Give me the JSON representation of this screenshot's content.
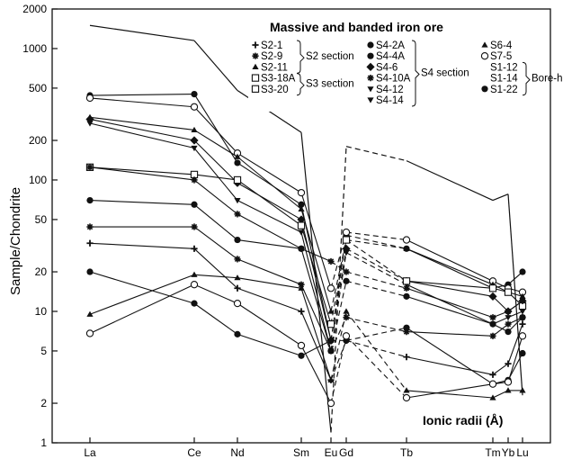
{
  "chart_data": {
    "type": "line",
    "title": "",
    "ylabel": "Sample/Chondrite",
    "xlabel": "",
    "yscale": "log",
    "ylim": [
      1,
      2000
    ],
    "y_ticks": [
      "1",
      "2",
      "5",
      "10",
      "20",
      "50",
      "100",
      "200",
      "500",
      "1000",
      "2000"
    ],
    "categories": [
      "La",
      "Ce",
      "Nd",
      "Sm",
      "Eu",
      "Gd",
      "Tb",
      "Tm",
      "Yb",
      "Lu"
    ],
    "annotation": "Ionic radii (Å)",
    "legend": {
      "title": "Massive and banded iron ore",
      "groups": [
        {
          "label": "S2 section",
          "samples": [
            "S2-1",
            "S2-9",
            "S2-11"
          ]
        },
        {
          "label": "S3 section",
          "samples": [
            "S3-18A",
            "S3-20"
          ]
        },
        {
          "label": "S4 section",
          "samples": [
            "S4-2A",
            "S4-4A",
            "S4-6",
            "S4-10A",
            "S4-12",
            "S4-14"
          ]
        },
        {
          "label": "",
          "samples": [
            "S6-4",
            "S7-5"
          ]
        },
        {
          "label": "Bore-holes",
          "samples": [
            "S1-12",
            "S1-14",
            "S1-22"
          ]
        }
      ]
    },
    "series": [
      {
        "values": [
          1500,
          1150,
          480,
          230,
          1.2,
          180,
          140,
          70,
          78,
          2.3
        ],
        "marker": "none",
        "style": "mixed"
      },
      {
        "values": [
          440,
          450,
          135,
          65,
          6,
          38,
          30,
          15,
          16,
          20
        ],
        "marker": "dot",
        "style": "mixed"
      },
      {
        "values": [
          420,
          360,
          160,
          80,
          15,
          40,
          35,
          17,
          15,
          14
        ],
        "marker": "circle",
        "style": "mixed"
      },
      {
        "values": [
          300,
          240,
          150,
          60,
          10,
          35,
          30,
          16,
          14,
          13
        ],
        "marker": "triangle",
        "style": "mixed"
      },
      {
        "values": [
          290,
          200,
          95,
          50,
          6,
          30,
          17,
          13,
          10,
          12
        ],
        "marker": "diamond",
        "style": "mixed"
      },
      {
        "values": [
          270,
          175,
          70,
          40,
          5,
          28,
          16,
          8,
          9,
          10
        ],
        "marker": "triangle-down",
        "style": "mixed"
      },
      {
        "values": [
          125,
          110,
          100,
          45,
          8,
          35,
          17,
          15,
          14,
          11
        ],
        "marker": "square",
        "style": "mixed"
      },
      {
        "values": [
          125,
          100,
          55,
          30,
          24,
          20,
          15,
          9,
          10,
          12
        ],
        "marker": "star",
        "style": "mixed"
      },
      {
        "values": [
          70,
          65,
          35,
          30,
          5,
          17,
          13,
          8,
          7,
          9
        ],
        "marker": "dot",
        "style": "mixed"
      },
      {
        "values": [
          44,
          44,
          25,
          16,
          5,
          9,
          7,
          6.5,
          8,
          9
        ],
        "marker": "star",
        "style": "mixed"
      },
      {
        "values": [
          33,
          30,
          15,
          10,
          3,
          6,
          4.5,
          3.3,
          4,
          8
        ],
        "marker": "plus",
        "style": "mixed"
      },
      {
        "values": [
          20,
          11.5,
          6.7,
          4.6,
          6,
          6,
          7.5,
          2.8,
          3,
          4.8
        ],
        "marker": "dot",
        "style": "mixed"
      },
      {
        "values": [
          9.5,
          19,
          18,
          15,
          3,
          10,
          2.5,
          2.2,
          2.5,
          2.5
        ],
        "marker": "triangle",
        "style": "mixed"
      },
      {
        "values": [
          6.8,
          16,
          11.5,
          5.5,
          2,
          6.5,
          2.2,
          2.8,
          2.9,
          6.5
        ],
        "marker": "circle",
        "style": "mixed"
      }
    ]
  }
}
